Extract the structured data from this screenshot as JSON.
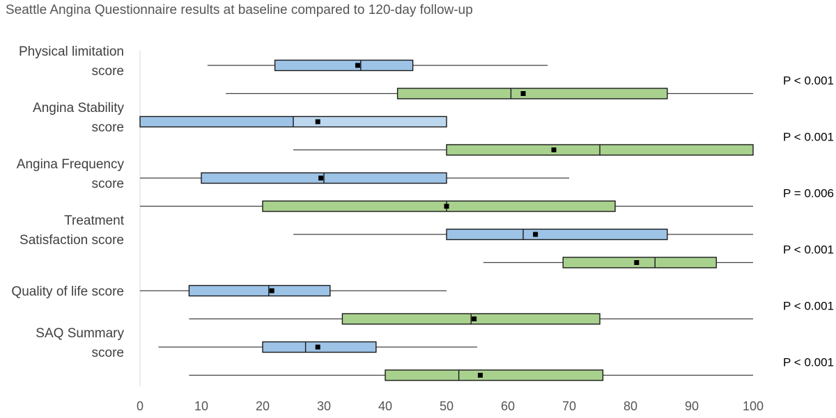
{
  "chart_data": {
    "type": "boxplot",
    "title": "Seattle Angina Questionnaire results at baseline compared to 120-day follow-up",
    "xlim": [
      0,
      100
    ],
    "xticks": [
      0,
      10,
      20,
      30,
      40,
      50,
      60,
      70,
      80,
      90,
      100
    ],
    "series_colors": {
      "baseline": "#9dc3e6",
      "followup": "#a9d18e"
    },
    "groups": [
      {
        "label_lines": [
          "Physical limitation",
          "score"
        ],
        "p_value": "P < 0.001",
        "baseline": {
          "min": 11,
          "q1": 22,
          "median": 36,
          "q3": 44.5,
          "max": 66.5,
          "mean": 35.5
        },
        "followup": {
          "min": 14,
          "q1": 42,
          "median": 60.5,
          "q3": 86,
          "max": 100,
          "mean": 62.5
        }
      },
      {
        "label_lines": [
          "Angina Stability",
          "score"
        ],
        "p_value": "P < 0.001",
        "baseline": {
          "min": 0,
          "q1": 0,
          "median": 25,
          "q3": 50,
          "max": 50,
          "mean": 29
        },
        "followup": {
          "min": 25,
          "q1": 50,
          "median": 75,
          "q3": 100,
          "max": 100,
          "mean": 67.5
        }
      },
      {
        "label_lines": [
          "Angina Frequency",
          "score"
        ],
        "p_value": "P = 0.006",
        "baseline": {
          "min": 0,
          "q1": 10,
          "median": 30,
          "q3": 50,
          "max": 70,
          "mean": 29.5
        },
        "followup": {
          "min": 0,
          "q1": 20,
          "median": 50,
          "q3": 77.5,
          "max": 100,
          "mean": 50
        }
      },
      {
        "label_lines": [
          "Treatment",
          "Satisfaction score"
        ],
        "p_value": "P < 0.001",
        "baseline": {
          "min": 25,
          "q1": 50,
          "median": 62.5,
          "q3": 86,
          "max": 100,
          "mean": 64.5
        },
        "followup": {
          "min": 56,
          "q1": 69,
          "median": 84,
          "q3": 94,
          "max": 100,
          "mean": 81
        }
      },
      {
        "label_lines": [
          "Quality of life score"
        ],
        "p_value": "P < 0.001",
        "baseline": {
          "min": 0,
          "q1": 8,
          "median": 21,
          "q3": 31,
          "max": 50,
          "mean": 21.5
        },
        "followup": {
          "min": 8,
          "q1": 33,
          "median": 54,
          "q3": 75,
          "max": 100,
          "mean": 54.5
        }
      },
      {
        "label_lines": [
          "SAQ Summary",
          "score"
        ],
        "p_value": "P < 0.001",
        "baseline": {
          "min": 3,
          "q1": 20,
          "median": 27,
          "q3": 38.5,
          "max": 55,
          "mean": 29
        },
        "followup": {
          "min": 8,
          "q1": 40,
          "median": 52,
          "q3": 75.5,
          "max": 100,
          "mean": 55.5
        }
      }
    ]
  }
}
